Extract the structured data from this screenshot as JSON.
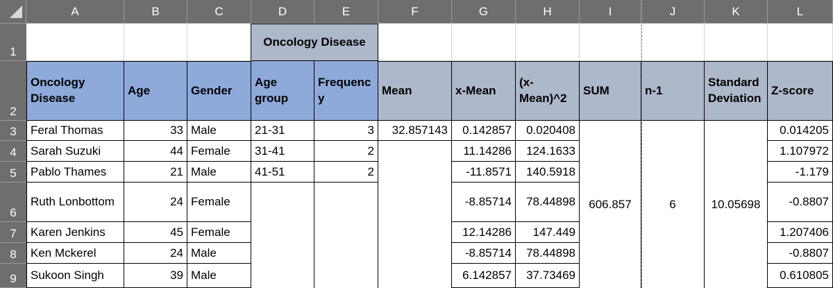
{
  "columns": [
    "A",
    "B",
    "C",
    "D",
    "E",
    "F",
    "G",
    "H",
    "I",
    "J",
    "K",
    "L"
  ],
  "rows": [
    "1",
    "2",
    "3",
    "4",
    "5",
    "6",
    "7",
    "8",
    "9"
  ],
  "cells": {
    "D1": "Oncology Disease",
    "A2": "Oncology Disease",
    "B2": "Age",
    "C2": "Gender",
    "D2": "Age group",
    "E2": "Frequenc y",
    "F2": "Mean",
    "G2": "x-Mean",
    "H2": "(x-Mean)^2",
    "I2": "SUM",
    "J2": "n-1",
    "K2": "Standard Deviation",
    "L2": "Z-score",
    "A3": "Feral Thomas",
    "B3": "33",
    "C3": "Male",
    "D3": "21-31",
    "E3": "3",
    "F3": "32.857143",
    "G3": "0.142857",
    "H3": "0.020408",
    "L3": "0.014205",
    "A4": "Sarah Suzuki",
    "B4": "44",
    "C4": "Female",
    "D4": "31-41",
    "E4": "2",
    "G4": "11.14286",
    "H4": "124.1633",
    "L4": "1.107972",
    "A5": "Pablo Thames",
    "B5": "21",
    "C5": "Male",
    "D5": "41-51",
    "E5": "2",
    "G5": "-11.8571",
    "H5": "140.5918",
    "L5": "-1.179",
    "A6": "Ruth Lonbottom",
    "B6": "24",
    "C6": "Female",
    "G6": "-8.85714",
    "H6": "78.44898",
    "I6": "606.857",
    "J6": "6",
    "K6": "10.05698",
    "L6": "-0.8807",
    "A7": "Karen Jenkins",
    "B7": "45",
    "C7": "Female",
    "G7": "12.14286",
    "H7": "147.449",
    "L7": "1.207406",
    "A8": "Ken Mckerel",
    "B8": "24",
    "C8": "Male",
    "G8": "-8.85714",
    "H8": "78.44898",
    "L8": "-0.8807",
    "A9": "Sukoon Singh",
    "B9": "39",
    "C9": "Male",
    "G9": "6.142857",
    "H9": "37.73469",
    "L9": "0.610805"
  },
  "colors": {
    "header_blue": "#8eaadb",
    "header_gray": "#adb9ca",
    "chrome": "#6e6e6e"
  }
}
